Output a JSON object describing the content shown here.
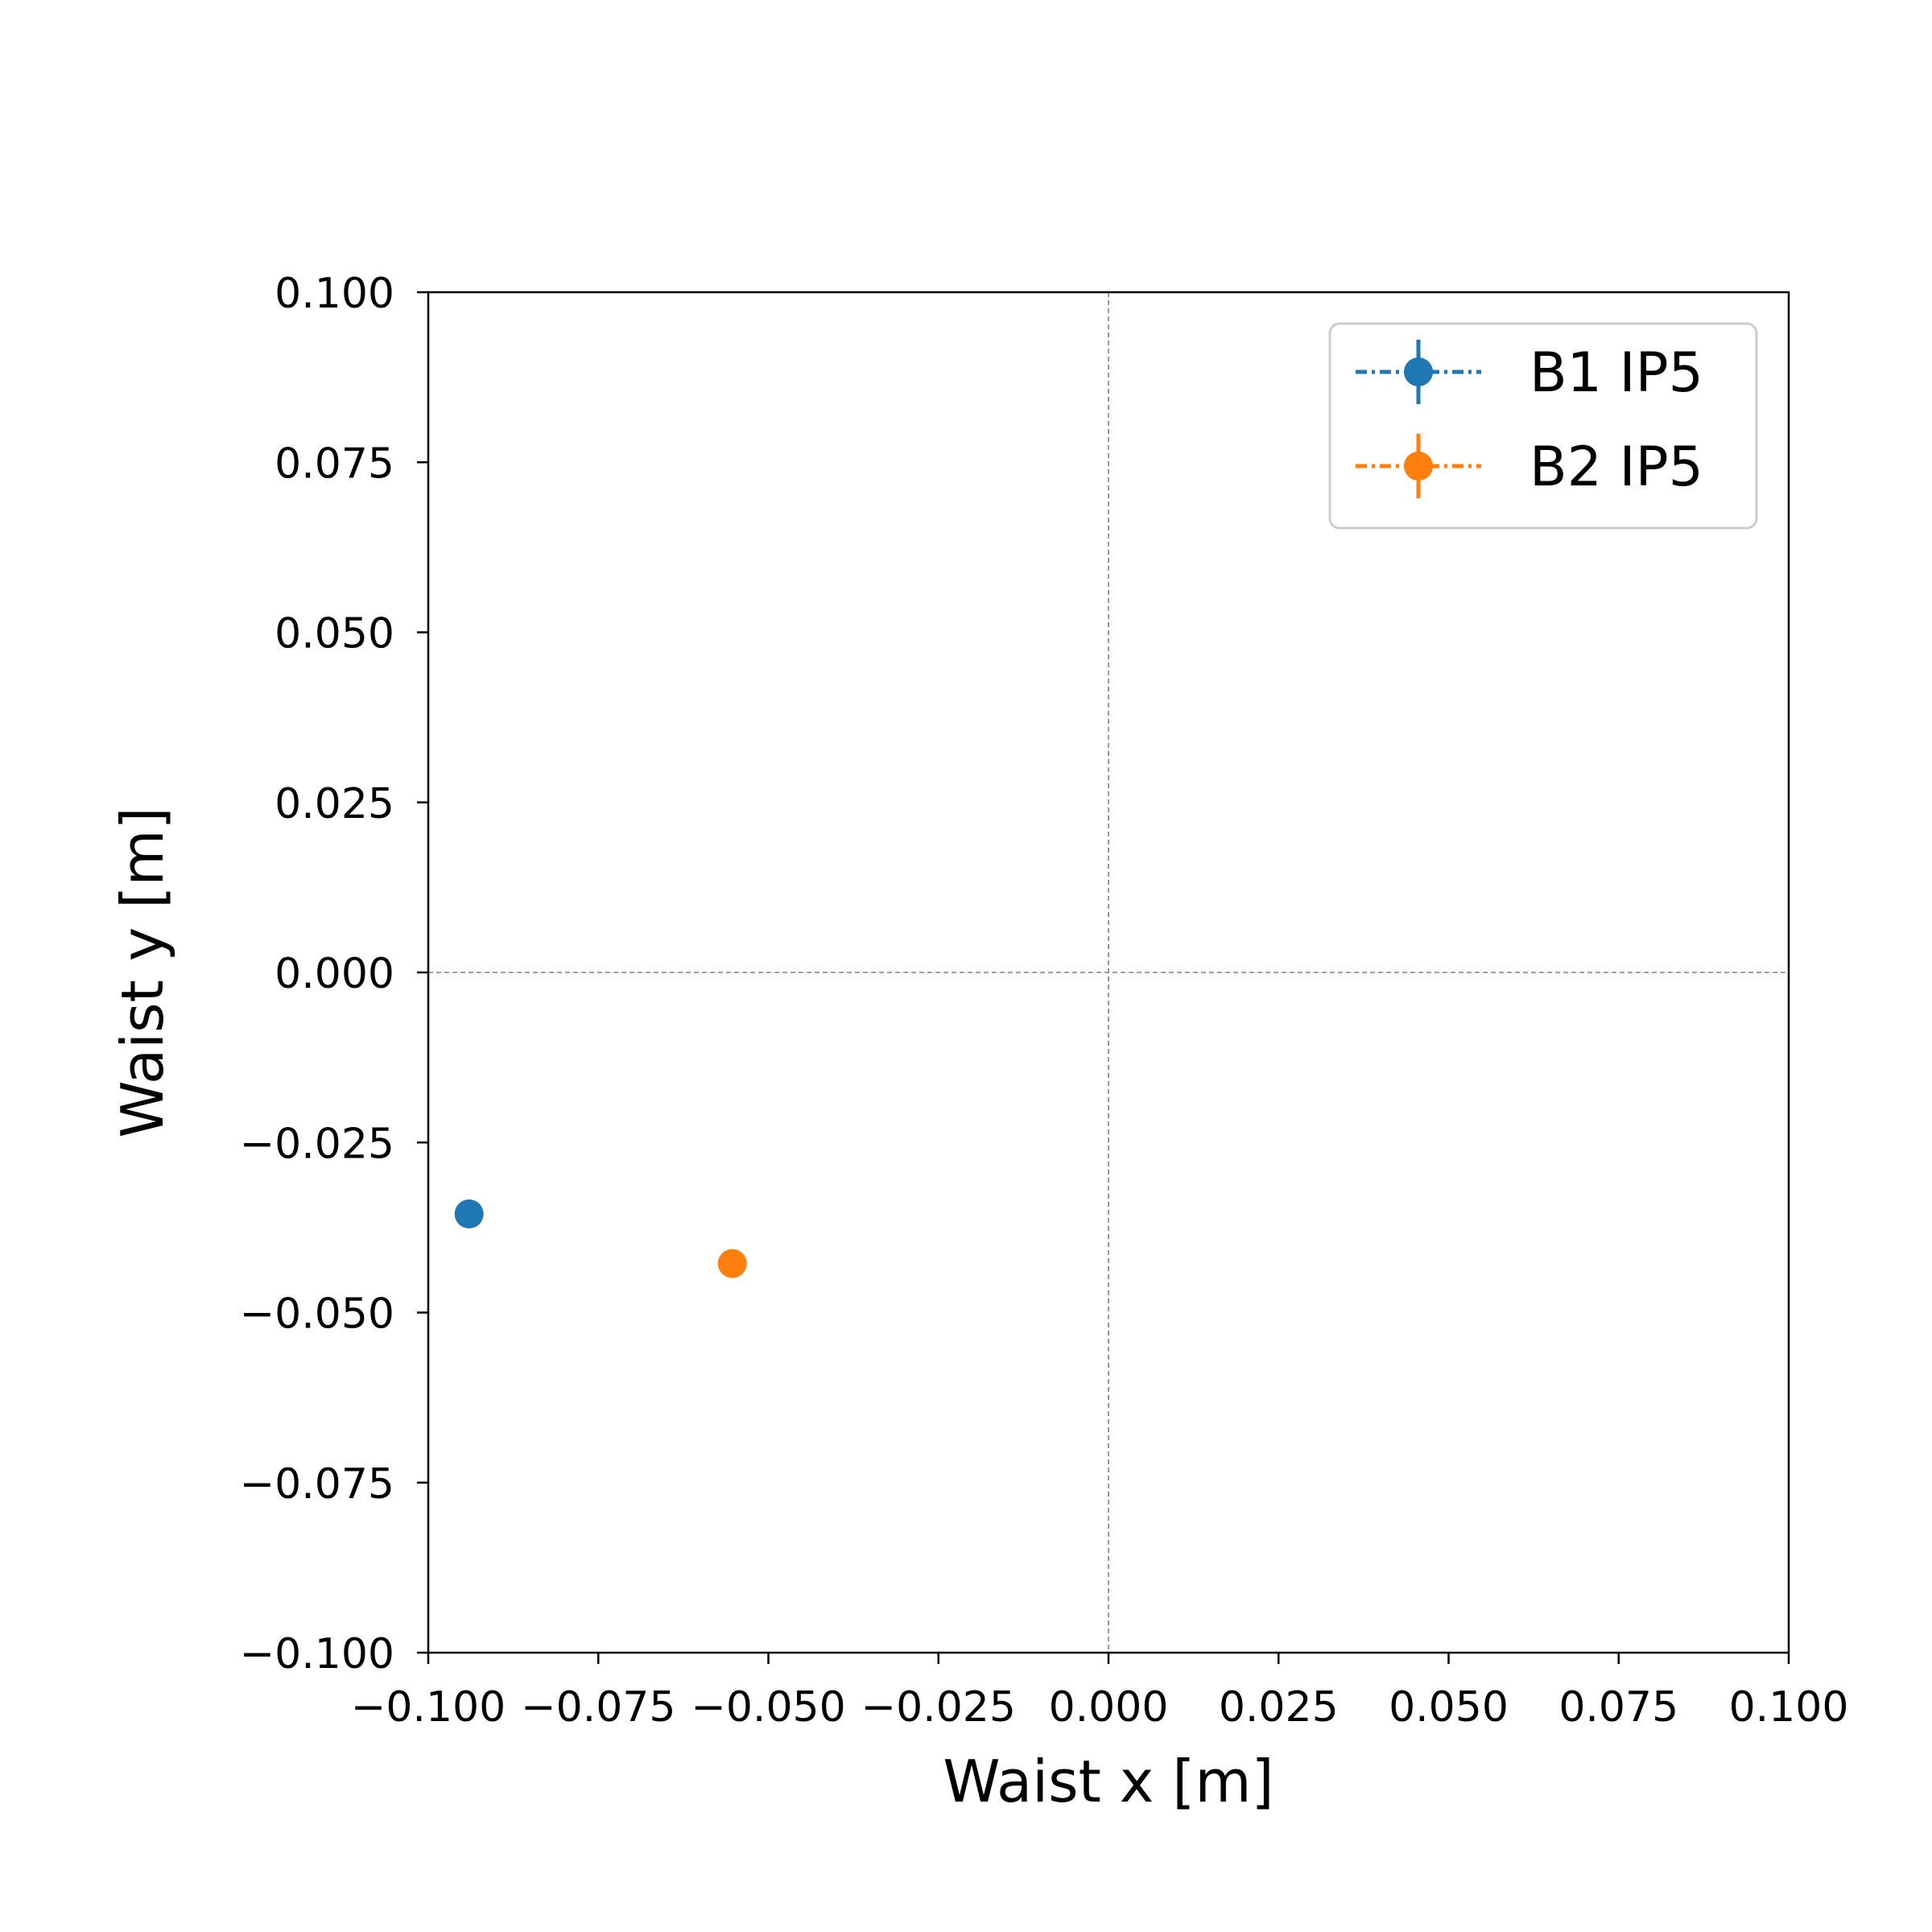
{
  "chart_data": {
    "type": "scatter",
    "xlabel": "Waist x [m]",
    "ylabel": "Waist y [m]",
    "xlim": [
      -0.1,
      0.1
    ],
    "ylim": [
      -0.1,
      0.1
    ],
    "x_ticks": [
      "−0.100",
      "−0.075",
      "−0.050",
      "−0.025",
      "0.000",
      "0.025",
      "0.050",
      "0.075",
      "0.100"
    ],
    "y_ticks": [
      "0.100",
      "0.075",
      "0.050",
      "0.025",
      "0.000",
      "−0.025",
      "−0.050",
      "−0.075",
      "−0.100"
    ],
    "x_tick_values": [
      -0.1,
      -0.075,
      -0.05,
      -0.025,
      0,
      0.025,
      0.05,
      0.075,
      0.1
    ],
    "y_tick_values": [
      0.1,
      0.075,
      0.05,
      0.025,
      0,
      -0.025,
      -0.05,
      -0.075,
      -0.1
    ],
    "reference_lines": {
      "x": 0,
      "y": 0,
      "style": "dashed",
      "color": "#808080"
    },
    "grid": false,
    "legend_position": "top-right",
    "series": [
      {
        "name": "B1 IP5",
        "color": "#1f77b4",
        "points": [
          {
            "x": -0.094,
            "y": -0.0355
          }
        ]
      },
      {
        "name": "B2 IP5",
        "color": "#ff7f0e",
        "points": [
          {
            "x": -0.0553,
            "y": -0.0428
          }
        ]
      }
    ]
  }
}
